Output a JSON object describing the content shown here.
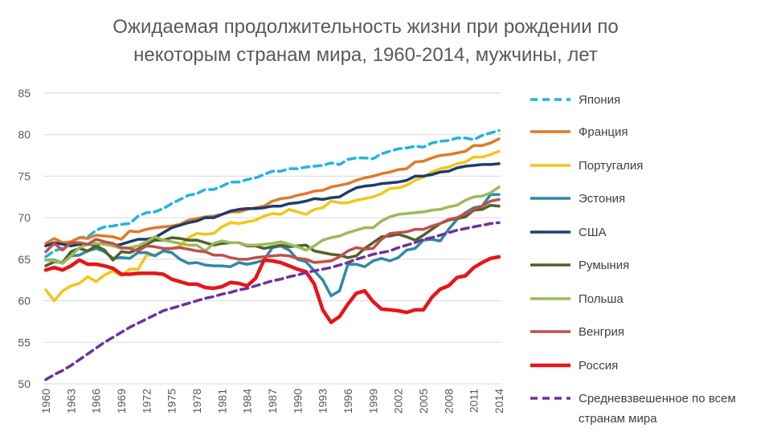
{
  "chart_data": {
    "type": "line",
    "title_line1": "Ожидаемая продолжительность жизни при рождении по",
    "title_line2": "некоторым странам мира, 1960-2014, мужчины, лет",
    "xlabel": "",
    "ylabel": "",
    "x": [
      1960,
      1961,
      1962,
      1963,
      1964,
      1965,
      1966,
      1967,
      1968,
      1969,
      1970,
      1971,
      1972,
      1973,
      1974,
      1975,
      1976,
      1977,
      1978,
      1979,
      1980,
      1981,
      1982,
      1983,
      1984,
      1985,
      1986,
      1987,
      1988,
      1989,
      1990,
      1991,
      1992,
      1993,
      1994,
      1995,
      1996,
      1997,
      1998,
      1999,
      2000,
      2001,
      2002,
      2003,
      2004,
      2005,
      2006,
      2007,
      2008,
      2009,
      2010,
      2011,
      2012,
      2013,
      2014
    ],
    "x_tick_labels": [
      "1960",
      "1963",
      "1966",
      "1969",
      "1972",
      "1975",
      "1978",
      "1981",
      "1984",
      "1987",
      "1990",
      "1993",
      "1996",
      "1999",
      "2002",
      "2005",
      "2008",
      "2011",
      "2014"
    ],
    "ylim": [
      50,
      85
    ],
    "y_ticks": [
      50,
      55,
      60,
      65,
      70,
      75,
      80,
      85
    ],
    "grid": true,
    "legend_position": "right",
    "series": [
      {
        "name": "Япония",
        "color": "#1FB5E3",
        "dashed": true,
        "values": [
          65.3,
          66.0,
          66.3,
          67.0,
          67.6,
          67.7,
          68.5,
          68.9,
          69.0,
          69.2,
          69.3,
          70.2,
          70.6,
          70.7,
          71.1,
          71.7,
          72.2,
          72.7,
          72.9,
          73.4,
          73.4,
          73.8,
          74.3,
          74.3,
          74.6,
          74.8,
          75.2,
          75.6,
          75.6,
          75.9,
          75.9,
          76.1,
          76.2,
          76.3,
          76.6,
          76.4,
          77.0,
          77.2,
          77.2,
          77.1,
          77.7,
          78.0,
          78.3,
          78.4,
          78.6,
          78.5,
          79.0,
          79.2,
          79.3,
          79.6,
          79.6,
          79.4,
          79.9,
          80.2,
          80.5
        ]
      },
      {
        "name": "Франция",
        "color": "#E07A26",
        "dashed": false,
        "values": [
          66.9,
          67.5,
          67.0,
          67.1,
          67.6,
          67.5,
          67.9,
          67.8,
          67.7,
          67.4,
          68.4,
          68.3,
          68.6,
          68.8,
          68.9,
          69.0,
          69.2,
          69.7,
          69.9,
          70.1,
          70.2,
          70.4,
          70.7,
          70.7,
          71.0,
          71.2,
          71.4,
          72.0,
          72.3,
          72.4,
          72.7,
          72.9,
          73.2,
          73.3,
          73.7,
          73.9,
          74.1,
          74.5,
          74.8,
          75.0,
          75.3,
          75.5,
          75.8,
          75.9,
          76.7,
          76.8,
          77.2,
          77.5,
          77.6,
          77.8,
          78.0,
          78.7,
          78.7,
          79.0,
          79.5
        ]
      },
      {
        "name": "Португалия",
        "color": "#F5C518",
        "dashed": false,
        "values": [
          61.3,
          60.0,
          61.2,
          61.8,
          62.1,
          62.9,
          62.3,
          63.1,
          63.6,
          63.0,
          63.8,
          63.8,
          65.5,
          65.5,
          66.0,
          66.3,
          66.6,
          67.6,
          68.1,
          68.0,
          68.1,
          68.9,
          69.4,
          69.3,
          69.5,
          69.7,
          70.2,
          70.5,
          70.4,
          71.0,
          70.7,
          70.4,
          71.0,
          71.2,
          72.0,
          71.8,
          71.8,
          72.1,
          72.3,
          72.5,
          72.9,
          73.5,
          73.6,
          73.9,
          74.5,
          74.9,
          75.5,
          75.9,
          76.1,
          76.5,
          76.7,
          77.3,
          77.3,
          77.6,
          78.0
        ]
      },
      {
        "name": "Эстония",
        "color": "#2E8AA6",
        "dashed": false,
        "values": [
          64.9,
          64.9,
          64.5,
          65.4,
          65.5,
          66.0,
          66.3,
          65.9,
          65.1,
          65.2,
          65.1,
          65.8,
          65.8,
          65.4,
          66.0,
          65.8,
          65.0,
          64.5,
          64.6,
          64.3,
          64.2,
          64.2,
          64.1,
          64.6,
          64.4,
          64.6,
          64.9,
          66.4,
          66.6,
          66.1,
          65.0,
          64.7,
          63.6,
          62.5,
          60.6,
          61.2,
          64.4,
          64.4,
          64.1,
          64.8,
          65.1,
          64.8,
          65.2,
          66.1,
          66.3,
          67.3,
          67.4,
          67.2,
          68.6,
          69.8,
          70.6,
          71.2,
          71.4,
          72.8,
          72.8
        ]
      },
      {
        "name": "США",
        "color": "#1F3D6B",
        "dashed": false,
        "values": [
          66.6,
          67.0,
          66.8,
          66.6,
          66.8,
          66.8,
          66.7,
          67.0,
          66.6,
          66.8,
          67.1,
          67.4,
          67.4,
          67.6,
          68.2,
          68.8,
          69.1,
          69.4,
          69.6,
          70.0,
          70.0,
          70.4,
          70.8,
          71.0,
          71.1,
          71.1,
          71.2,
          71.4,
          71.4,
          71.7,
          71.8,
          72.0,
          72.3,
          72.2,
          72.4,
          72.5,
          73.1,
          73.6,
          73.8,
          73.9,
          74.1,
          74.2,
          74.3,
          74.5,
          75.0,
          75.0,
          75.2,
          75.5,
          75.6,
          76.0,
          76.2,
          76.3,
          76.4,
          76.4,
          76.5
        ]
      },
      {
        "name": "Румыния",
        "color": "#4F6228",
        "dashed": false,
        "values": [
          64.2,
          64.7,
          64.6,
          65.9,
          66.3,
          66.0,
          66.6,
          66.1,
          64.9,
          65.9,
          65.8,
          66.2,
          66.8,
          67.3,
          67.3,
          67.6,
          67.5,
          67.3,
          67.3,
          67.0,
          66.7,
          66.9,
          67.0,
          67.0,
          66.6,
          66.6,
          66.3,
          66.5,
          66.7,
          66.5,
          66.6,
          66.7,
          66.0,
          65.8,
          65.6,
          65.5,
          65.2,
          65.4,
          66.3,
          67.0,
          67.7,
          67.8,
          68.0,
          67.7,
          67.3,
          67.9,
          68.6,
          69.3,
          69.7,
          69.9,
          70.1,
          70.9,
          71.0,
          71.5,
          71.4
        ]
      },
      {
        "name": "Польша",
        "color": "#9BBB59",
        "dashed": false,
        "values": [
          64.9,
          64.8,
          64.5,
          65.4,
          66.4,
          66.8,
          66.9,
          66.8,
          66.6,
          66.3,
          66.4,
          66.6,
          67.1,
          67.7,
          67.3,
          67.1,
          66.9,
          66.7,
          66.7,
          66.0,
          66.9,
          67.2,
          67.0,
          67.0,
          66.7,
          66.7,
          66.8,
          66.9,
          67.1,
          66.8,
          66.5,
          66.1,
          66.6,
          67.3,
          67.6,
          67.8,
          68.2,
          68.5,
          68.8,
          68.8,
          69.6,
          70.1,
          70.4,
          70.5,
          70.6,
          70.7,
          70.9,
          71.0,
          71.3,
          71.5,
          72.1,
          72.5,
          72.6,
          73.0,
          73.7
        ]
      },
      {
        "name": "Венгрия",
        "color": "#C0504D",
        "dashed": false,
        "values": [
          65.9,
          66.9,
          66.1,
          67.0,
          67.0,
          66.8,
          67.4,
          67.1,
          66.9,
          66.4,
          66.3,
          66.0,
          66.6,
          66.5,
          66.3,
          66.3,
          66.4,
          66.2,
          66.0,
          65.9,
          65.5,
          65.5,
          65.2,
          65.0,
          65.0,
          65.2,
          65.3,
          65.4,
          65.5,
          65.4,
          65.1,
          65.0,
          64.6,
          64.7,
          64.8,
          65.3,
          66.0,
          66.4,
          66.2,
          66.3,
          67.4,
          68.1,
          68.2,
          68.3,
          68.6,
          68.6,
          69.0,
          69.3,
          69.8,
          70.0,
          70.5,
          71.0,
          71.4,
          72.0,
          72.2
        ]
      },
      {
        "name": "Россия",
        "color": "#E8141A",
        "dashed": false,
        "values": [
          63.7,
          64.0,
          63.7,
          64.2,
          64.9,
          64.4,
          64.4,
          64.2,
          63.9,
          63.2,
          63.2,
          63.3,
          63.3,
          63.3,
          63.2,
          62.6,
          62.3,
          62.0,
          62.0,
          61.6,
          61.5,
          61.7,
          62.2,
          62.1,
          61.8,
          62.7,
          64.9,
          64.8,
          64.6,
          64.2,
          63.8,
          63.5,
          62.0,
          58.9,
          57.4,
          58.1,
          59.6,
          60.9,
          61.2,
          59.9,
          59.0,
          58.9,
          58.8,
          58.6,
          58.9,
          58.9,
          60.4,
          61.4,
          61.8,
          62.8,
          63.0,
          64.0,
          64.6,
          65.1,
          65.3
        ]
      },
      {
        "name": "Средневзвешенное по всем странам мира",
        "name_line1": "Средневзвешенное по всем",
        "name_line2": "странам мира",
        "color": "#7030A0",
        "dashed": true,
        "values": [
          50.5,
          51.1,
          51.6,
          52.2,
          52.9,
          53.6,
          54.3,
          55.0,
          55.6,
          56.2,
          56.8,
          57.3,
          57.8,
          58.3,
          58.8,
          59.1,
          59.4,
          59.7,
          60.0,
          60.3,
          60.5,
          60.8,
          61.0,
          61.3,
          61.5,
          61.8,
          62.1,
          62.4,
          62.6,
          62.9,
          63.1,
          63.4,
          63.6,
          63.8,
          64.0,
          64.3,
          64.6,
          65.0,
          65.3,
          65.6,
          65.8,
          66.0,
          66.4,
          66.7,
          67.0,
          67.4,
          67.6,
          67.9,
          68.2,
          68.5,
          68.7,
          68.9,
          69.1,
          69.3,
          69.4
        ]
      }
    ]
  }
}
